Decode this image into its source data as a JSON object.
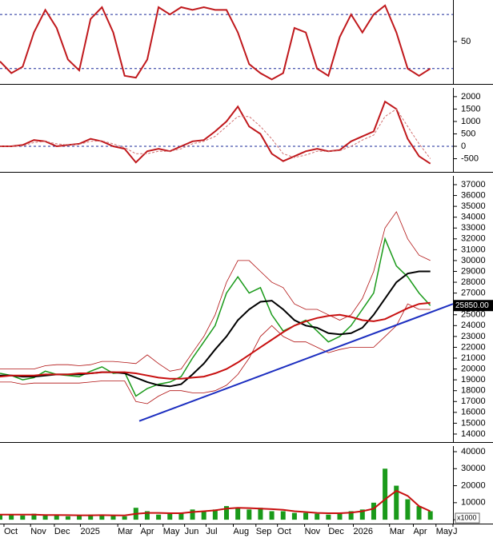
{
  "chart_data": [
    {
      "type": "line",
      "xlim": [
        0,
        40
      ],
      "ylim": [
        3,
        96
      ],
      "yticks": [
        50
      ],
      "levels": [
        20,
        80
      ],
      "level_color": "#1a2a9a",
      "series": [
        {
          "color": "#c0181c",
          "width": 2,
          "values": [
            28,
            15,
            22,
            60,
            85,
            65,
            30,
            18,
            75,
            88,
            60,
            12,
            10,
            30,
            88,
            80,
            88,
            85,
            88,
            85,
            85,
            60,
            25,
            15,
            8,
            15,
            65,
            60,
            20,
            12,
            55,
            80,
            60,
            80,
            90,
            60,
            20,
            12,
            20
          ]
        }
      ]
    },
    {
      "type": "line",
      "xlim": [
        0,
        40
      ],
      "ylim": [
        -1030,
        2350
      ],
      "yticks": [
        2000,
        1500,
        1000,
        500,
        0,
        -500
      ],
      "levels": [
        0
      ],
      "level_color": "#1a2a9a",
      "series": [
        {
          "color": "#c0181c",
          "width": 2,
          "values": [
            0,
            0,
            50,
            250,
            200,
            0,
            50,
            100,
            300,
            200,
            0,
            -100,
            -650,
            -200,
            -100,
            -200,
            0,
            200,
            250,
            600,
            1000,
            1600,
            800,
            500,
            -300,
            -600,
            -400,
            -200,
            -100,
            -200,
            -150,
            200,
            400,
            600,
            1800,
            1500,
            300,
            -400,
            -700
          ]
        },
        {
          "color": "#d07070",
          "width": 1,
          "dash": true,
          "values": [
            0,
            0,
            20,
            150,
            200,
            100,
            50,
            80,
            200,
            220,
            100,
            -50,
            -300,
            -300,
            -200,
            -200,
            -100,
            100,
            200,
            400,
            800,
            1200,
            1200,
            800,
            300,
            -300,
            -450,
            -350,
            -200,
            -200,
            -180,
            0,
            250,
            450,
            1200,
            1500,
            800,
            100,
            -500
          ]
        }
      ]
    },
    {
      "type": "line",
      "xlim": [
        0,
        40
      ],
      "ylim": [
        13260,
        37810
      ],
      "yticks": [
        37000,
        36000,
        35000,
        34000,
        33000,
        32000,
        31000,
        30000,
        29000,
        28000,
        27000,
        26000,
        25000,
        24000,
        23000,
        22000,
        21000,
        20000,
        19000,
        18000,
        17000,
        16000,
        15000,
        14000
      ],
      "last_value": {
        "value": 25850,
        "label": "25850.00"
      },
      "series": [
        {
          "color": "#b01010",
          "width": 0.8,
          "values": [
            20000,
            20000,
            20000,
            20000,
            20300,
            20400,
            20400,
            20300,
            20400,
            20700,
            20700,
            20600,
            20500,
            21300,
            20500,
            19800,
            20000,
            21500,
            23000,
            25000,
            28000,
            30000,
            30000,
            29000,
            28000,
            27500,
            26000,
            25500,
            25500,
            25000,
            24500,
            25000,
            26500,
            29000,
            33000,
            34500,
            32000,
            30500,
            30000
          ]
        },
        {
          "color": "#b01010",
          "width": 0.8,
          "values": [
            18800,
            18800,
            18600,
            18700,
            18700,
            18700,
            18700,
            18700,
            18800,
            18900,
            18900,
            18900,
            17000,
            16800,
            17500,
            18000,
            18000,
            17800,
            17800,
            18000,
            18500,
            19500,
            21000,
            23000,
            24000,
            23000,
            22500,
            22500,
            22000,
            21500,
            21800,
            22000,
            22000,
            22000,
            23000,
            24000,
            26000,
            25500,
            25500
          ]
        },
        {
          "color": "#1a9a1a",
          "width": 1.5,
          "values": [
            19600,
            19400,
            19000,
            19200,
            19800,
            19500,
            19400,
            19300,
            19800,
            20200,
            19600,
            19700,
            17500,
            18200,
            18600,
            18800,
            19300,
            21000,
            22500,
            24000,
            27000,
            28500,
            27000,
            27500,
            25000,
            23500,
            24000,
            24500,
            23500,
            22500,
            23000,
            24000,
            25500,
            27000,
            32000,
            29500,
            28500,
            27000,
            25850
          ]
        },
        {
          "color": "#000000",
          "width": 2,
          "values": [
            19400,
            19400,
            19300,
            19300,
            19400,
            19500,
            19500,
            19500,
            19600,
            19700,
            19700,
            19600,
            19200,
            18800,
            18500,
            18400,
            18600,
            19500,
            20500,
            21800,
            23000,
            24500,
            25500,
            26200,
            26300,
            25500,
            24500,
            24000,
            23800,
            23300,
            23200,
            23300,
            23800,
            25000,
            26500,
            28000,
            28800,
            29000,
            29000
          ]
        },
        {
          "color": "#c81010",
          "width": 2,
          "values": [
            19300,
            19400,
            19400,
            19400,
            19500,
            19500,
            19500,
            19600,
            19600,
            19700,
            19700,
            19700,
            19600,
            19400,
            19200,
            19100,
            19100,
            19200,
            19300,
            19600,
            20000,
            20600,
            21300,
            22000,
            22700,
            23400,
            24000,
            24400,
            24700,
            24900,
            25000,
            24800,
            24500,
            24400,
            24600,
            25100,
            25600,
            26000,
            26100
          ]
        },
        {
          "color": "#1d2fc0",
          "width": 2,
          "x": [
            12.3,
            40
          ],
          "values": [
            15200,
            26000
          ]
        }
      ]
    },
    {
      "type": "bar",
      "xlim": [
        0,
        40
      ],
      "ylim": [
        -2300,
        43300
      ],
      "yticks": [
        40000,
        30000,
        20000,
        10000,
        0
      ],
      "unit_label": "x1000",
      "xticks": [
        {
          "value": 0.35,
          "label": "Oct"
        },
        {
          "value": 2.7,
          "label": "Nov"
        },
        {
          "value": 4.8,
          "label": "Dec"
        },
        {
          "value": 7.1,
          "label": "2025"
        },
        {
          "value": 10.4,
          "label": "Mar"
        },
        {
          "value": 12.4,
          "label": "Apr"
        },
        {
          "value": 14.4,
          "label": "May"
        },
        {
          "value": 16.3,
          "label": "Jun"
        },
        {
          "value": 18.2,
          "label": "Jul"
        },
        {
          "value": 20.6,
          "label": "Aug"
        },
        {
          "value": 22.6,
          "label": "Sep"
        },
        {
          "value": 24.5,
          "label": "Oct"
        },
        {
          "value": 26.9,
          "label": "Nov"
        },
        {
          "value": 29.0,
          "label": "Dec"
        },
        {
          "value": 31.2,
          "label": "2026"
        },
        {
          "value": 34.4,
          "label": "Mar"
        },
        {
          "value": 36.5,
          "label": "Apr"
        },
        {
          "value": 38.5,
          "label": "May"
        },
        {
          "value": 40,
          "label": "J"
        }
      ],
      "series": [
        {
          "type": "bar",
          "color": "#1a9a1a",
          "values": [
            3000,
            3000,
            2500,
            3500,
            2500,
            3000,
            2000,
            2500,
            3000,
            2500,
            2500,
            2000,
            7000,
            5000,
            3000,
            3500,
            4000,
            6000,
            5000,
            6000,
            8000,
            7000,
            6000,
            7000,
            5000,
            5000,
            4000,
            4000,
            3500,
            3000,
            4000,
            5000,
            6000,
            10000,
            30000,
            20000,
            12000,
            8000,
            5000
          ]
        },
        {
          "type": "line",
          "color": "#c81010",
          "width": 2,
          "values": [
            3000,
            3000,
            3000,
            3000,
            2800,
            2800,
            2700,
            2600,
            2600,
            2700,
            2600,
            2500,
            3500,
            4000,
            4000,
            3800,
            3800,
            4500,
            5000,
            5500,
            6500,
            7000,
            6800,
            6500,
            6200,
            5800,
            5000,
            4500,
            4000,
            3800,
            3800,
            4200,
            5000,
            6500,
            12000,
            17000,
            14000,
            8000,
            5000
          ]
        }
      ]
    }
  ]
}
